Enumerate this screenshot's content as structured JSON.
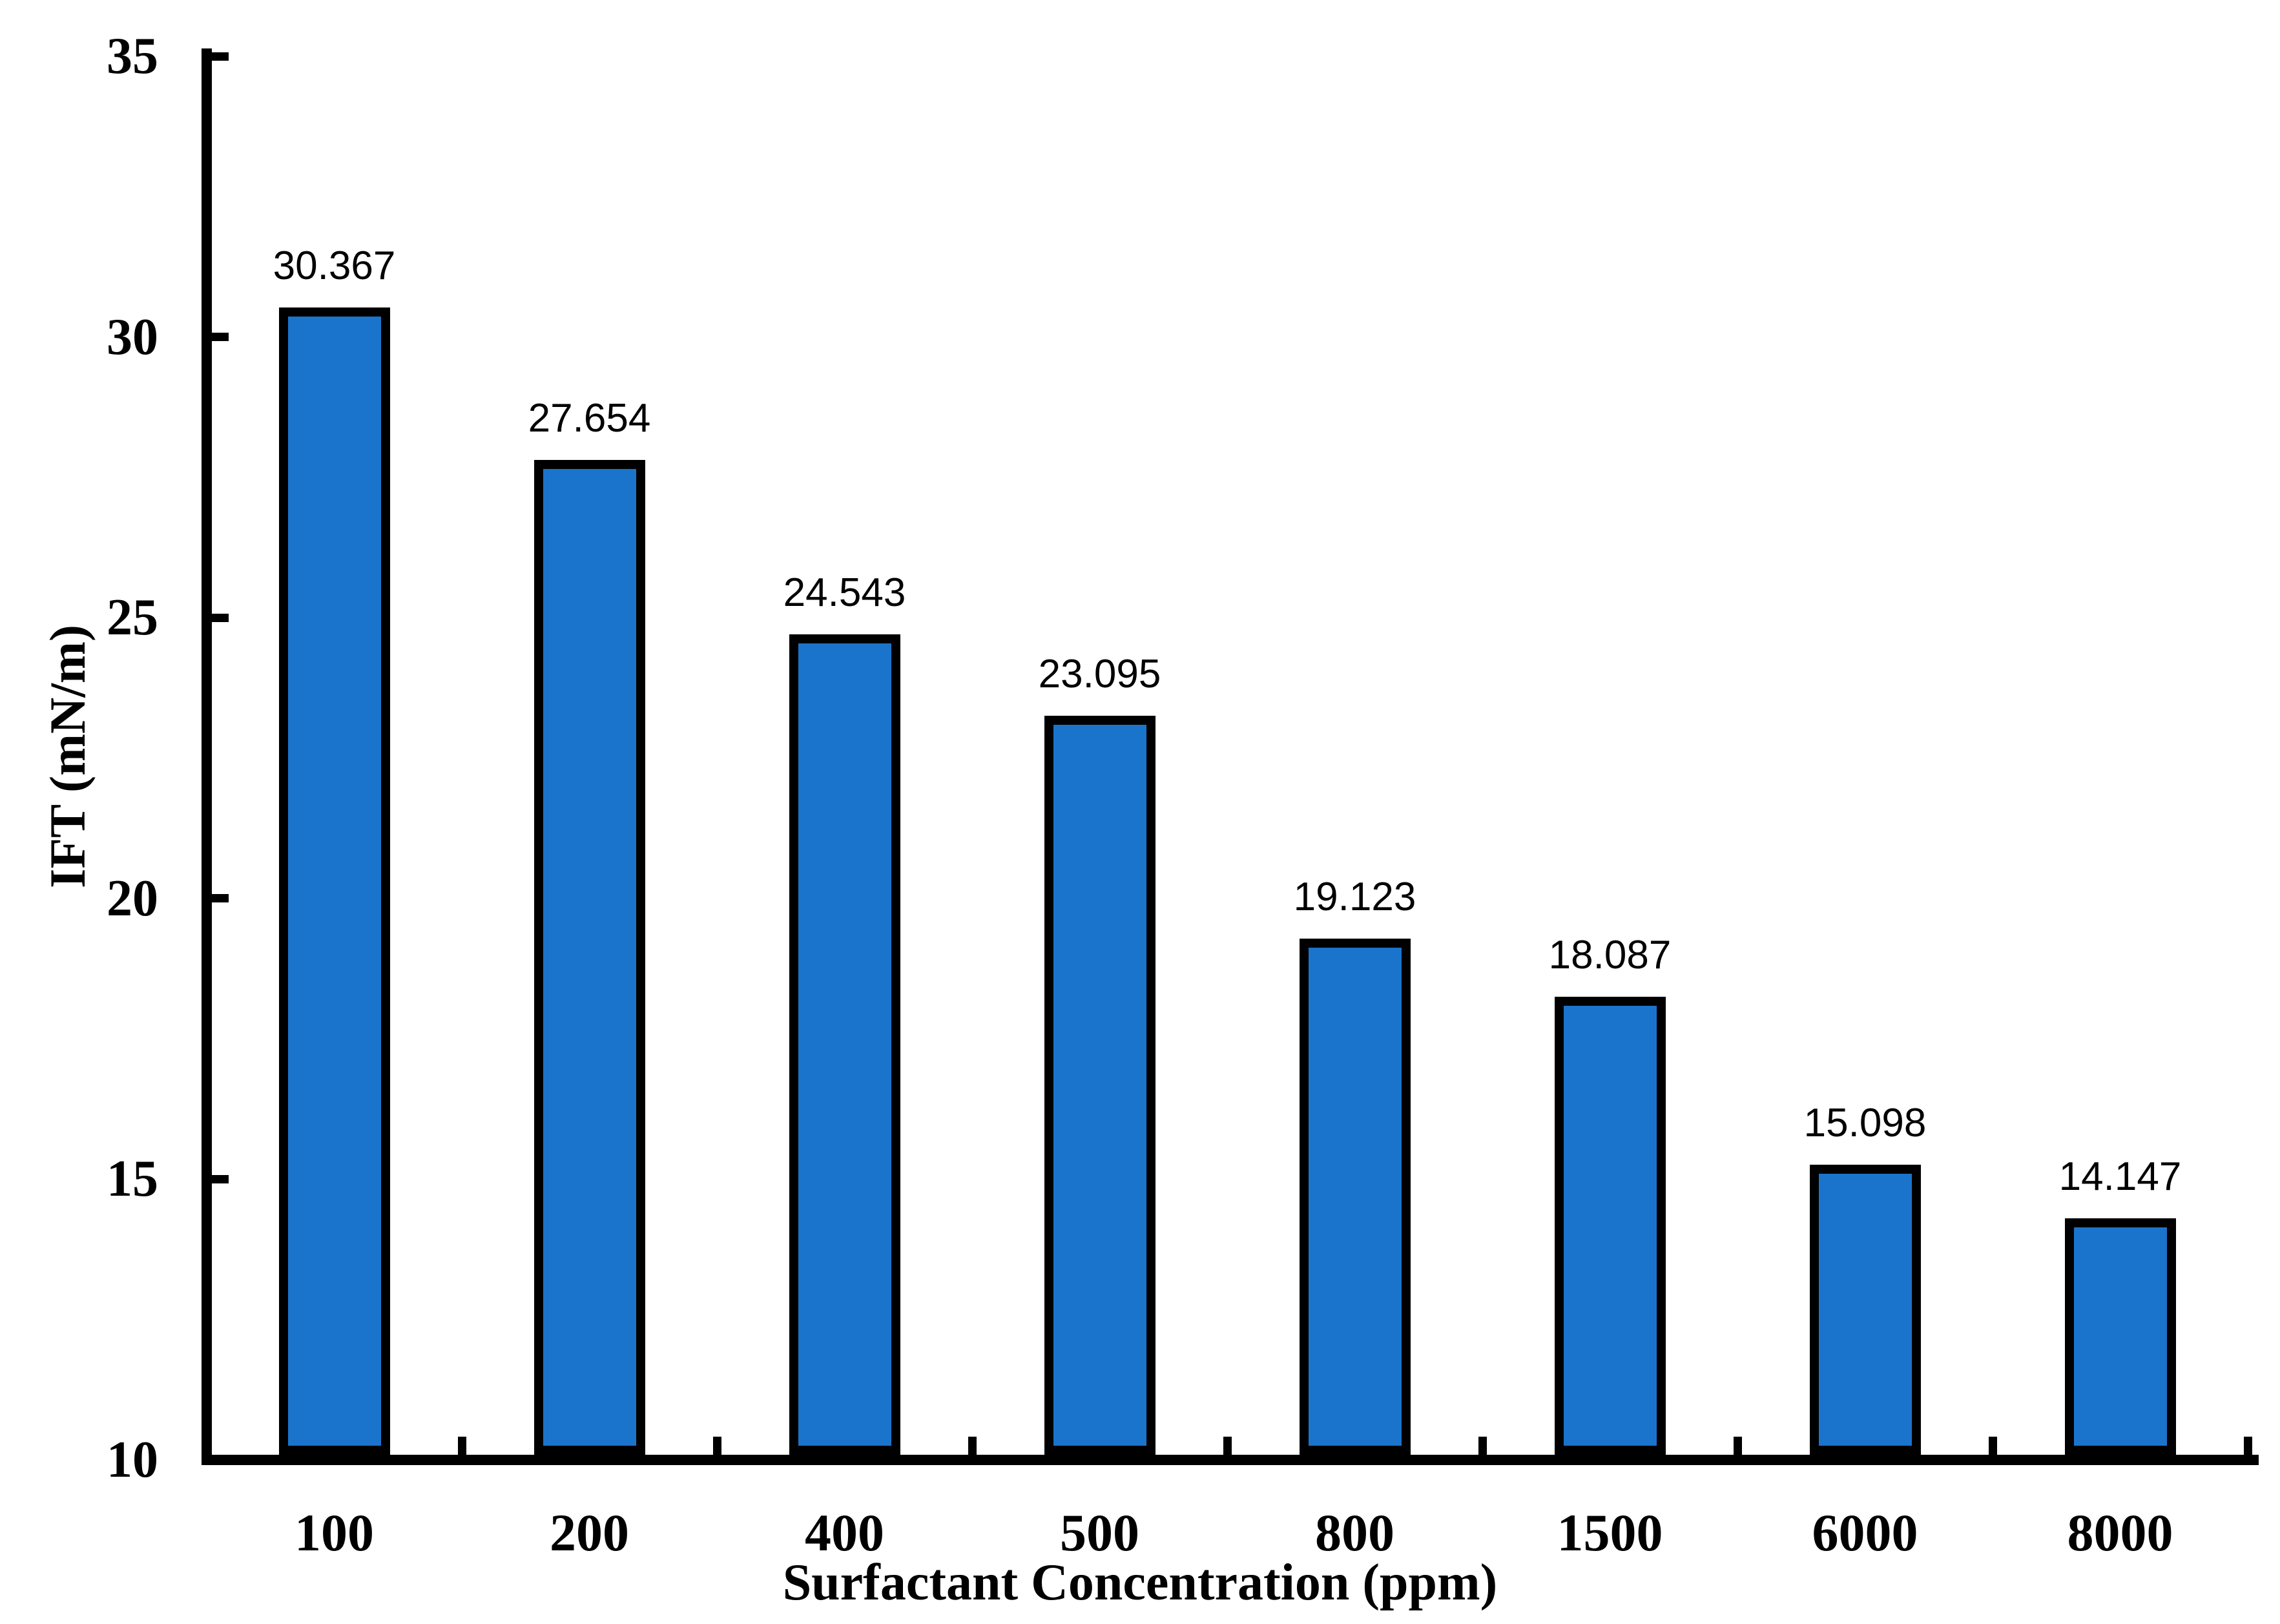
{
  "figure": {
    "background": "#ffffff",
    "axis_color": "#000000",
    "text_color": "#000000"
  },
  "chart_data": {
    "type": "bar",
    "title": "",
    "xlabel": "Surfactant Concentration (ppm)",
    "ylabel": "IFT (mN/m)",
    "categories": [
      "100",
      "200",
      "400",
      "500",
      "800",
      "1500",
      "6000",
      "8000"
    ],
    "values": [
      30.367,
      27.654,
      24.543,
      23.095,
      19.123,
      18.087,
      15.098,
      14.147
    ],
    "data_labels": [
      "30.367",
      "27.654",
      "24.543",
      "23.095",
      "19.123",
      "18.087",
      "15.098",
      "14.147"
    ],
    "ylim": [
      10,
      35
    ],
    "y_ticks": [
      35,
      30,
      25,
      20,
      15,
      10
    ],
    "y_tick_labels": [
      "35",
      "30",
      "25",
      "20",
      "15",
      "10"
    ],
    "bar_color": "#1b74cb",
    "bar_border_color": "#000000",
    "grid": false,
    "legend": false,
    "tick_direction": "in"
  }
}
